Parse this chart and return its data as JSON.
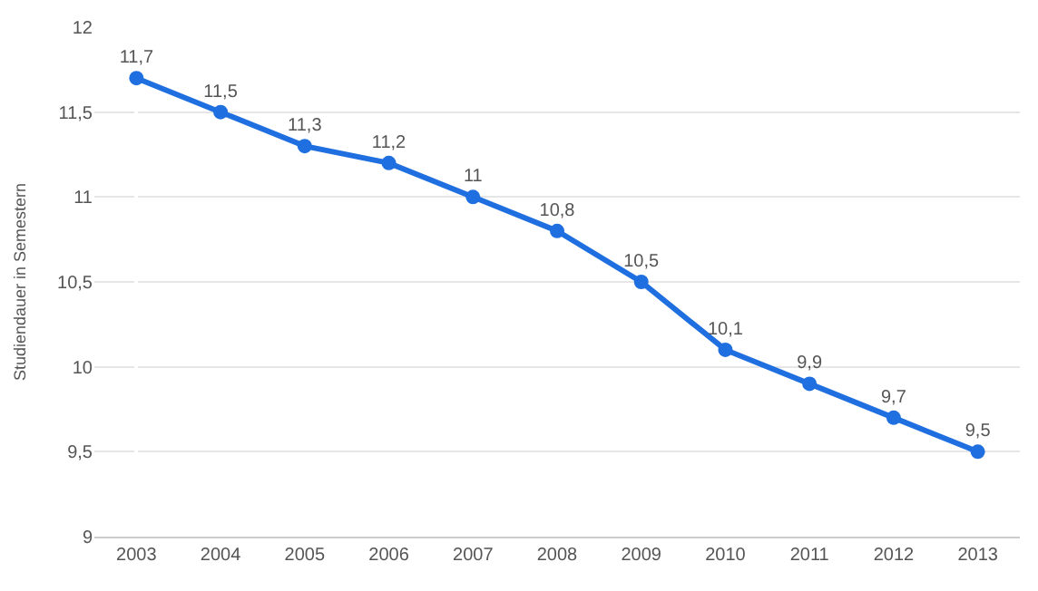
{
  "chart_data": {
    "type": "line",
    "ylabel": "Studiendauer in Semestern",
    "categories": [
      "2003",
      "2004",
      "2005",
      "2006",
      "2007",
      "2008",
      "2009",
      "2010",
      "2011",
      "2012",
      "2013"
    ],
    "series": [
      {
        "color": "#1f6fe0",
        "values": [
          11.7,
          11.5,
          11.3,
          11.2,
          11,
          10.8,
          10.5,
          10.1,
          9.9,
          9.7,
          9.5
        ],
        "value_labels": [
          "11,7",
          "11,5",
          "11,3",
          "11,2",
          "11",
          "10,8",
          "10,5",
          "10,1",
          "9,9",
          "9,7",
          "9,5"
        ]
      }
    ],
    "ylim": [
      9,
      12
    ],
    "yticks": [
      9,
      {
        "value": 9.5,
        "label": "9,5"
      },
      10,
      {
        "value": 10.5,
        "label": "10,5"
      },
      11,
      {
        "value": 11.5,
        "label": "11,5"
      },
      12
    ],
    "grid": "y",
    "legend": false,
    "marker": "circle",
    "line_style": "solid"
  }
}
